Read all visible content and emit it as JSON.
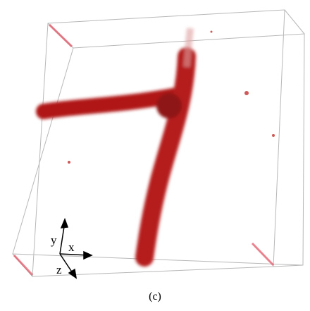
{
  "figure": {
    "axis_labels": {
      "y": "y",
      "x": "x",
      "z": "z"
    },
    "caption": "(c)"
  }
}
